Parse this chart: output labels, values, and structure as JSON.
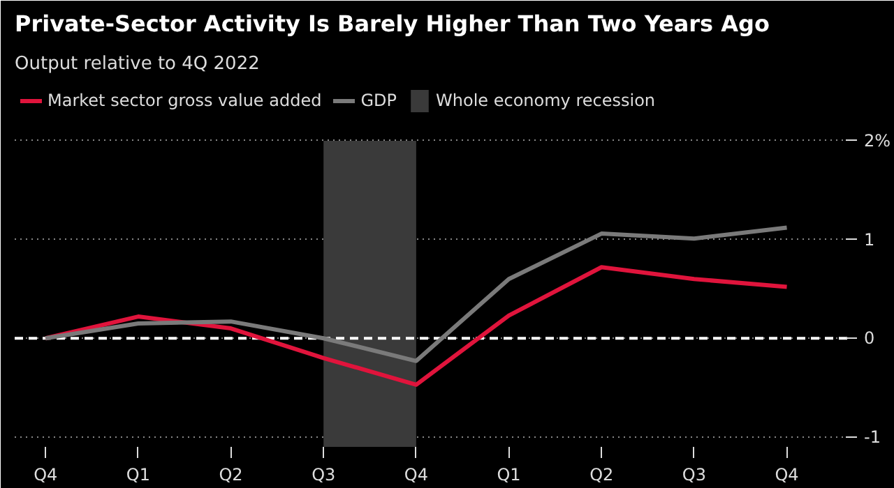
{
  "chart_data": {
    "type": "line",
    "title": "Private-Sector Activity Is Barely Higher Than Two Years Ago",
    "subtitle": "Output relative to 4Q 2022",
    "x": [
      "2022-12",
      "2023-03",
      "2023-06",
      "2023-09",
      "2023-12",
      "2024-03",
      "2024-06",
      "2024-09",
      "2024-12"
    ],
    "xlim": [
      "2022-11",
      "2025-02"
    ],
    "xticks": [
      {
        "value": "2022-12",
        "label": "Q4"
      },
      {
        "value": "2023-03",
        "label": "Q1"
      },
      {
        "value": "2023-06",
        "label": "Q2"
      },
      {
        "value": "2023-09",
        "label": "Q3"
      },
      {
        "value": "2023-12",
        "label": "Q4"
      },
      {
        "value": "2024-03",
        "label": "Q1"
      },
      {
        "value": "2024-06",
        "label": "Q2"
      },
      {
        "value": "2024-09",
        "label": "Q3"
      },
      {
        "value": "2024-12",
        "label": "Q4"
      }
    ],
    "series": [
      {
        "name": "Market sector gross value added",
        "color": "#e0143c",
        "values": [
          0,
          0.22,
          0.1,
          -0.2,
          -0.47,
          0.23,
          0.72,
          0.6,
          0.52
        ]
      },
      {
        "name": "GDP",
        "color": "#7a7a7a",
        "values": [
          0,
          0.15,
          0.17,
          0.0,
          -0.23,
          0.6,
          1.06,
          1.01,
          1.12
        ]
      }
    ],
    "ylim": [
      -1.1,
      2.6
    ],
    "yticks": [
      {
        "value": 2,
        "label": "2%"
      },
      1,
      0,
      -1
    ],
    "grid": "y",
    "legend": "top left",
    "line_style": "solid",
    "marker": "none",
    "ref_lines": [
      {
        "axis": "y",
        "value": 0,
        "label": null,
        "color": "#ffffff",
        "line_style": "dashed"
      }
    ],
    "bands": [
      {
        "axis": "x",
        "from": "2023-09",
        "to": "2023-12",
        "label": "Whole economy recession",
        "color": "#3a3a3a"
      }
    ]
  }
}
